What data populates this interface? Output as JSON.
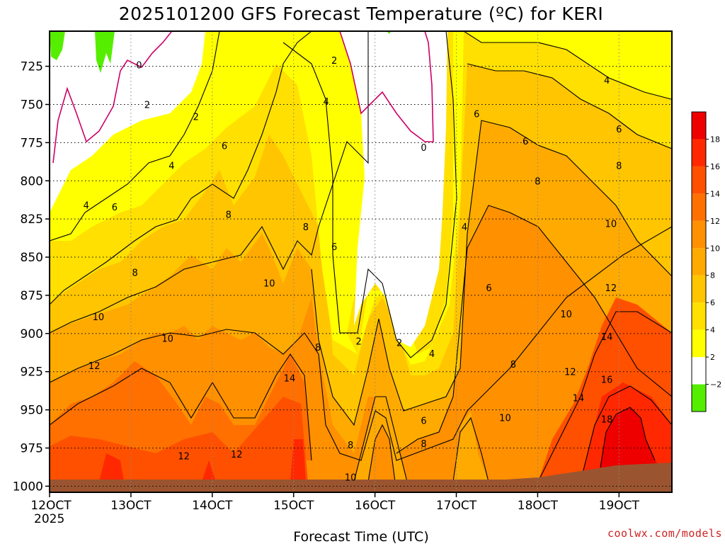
{
  "title": "2025101200 GFS Forecast Temperature (ºC) for KERI",
  "xlabel": "Forecast Time (UTC)",
  "credit": "coolwx.com/models",
  "x_year": "2025",
  "colors": {
    "neg2_to_0": "#55ee00",
    "zero_to_2": "#ffffff",
    "2_to_4": "#ffff00",
    "4_to_6": "#ffe000",
    "6_to_8": "#ffc500",
    "8_to_10": "#ffaa00",
    "10_to_12": "#ff9000",
    "12_to_14": "#ff7000",
    "14_to_16": "#ff5000",
    "16_to_18": "#ff2800",
    "18_plus": "#ee0000",
    "ground": "#9a5530",
    "zero_line": "#cc0066"
  },
  "chart_data": {
    "type": "heatmap",
    "x_ticks": [
      "12OCT",
      "13OCT",
      "14OCT",
      "15OCT",
      "16OCT",
      "17OCT",
      "18OCT",
      "19OCT"
    ],
    "y_ticks": [
      725,
      750,
      775,
      800,
      825,
      850,
      875,
      900,
      925,
      950,
      975,
      1000
    ],
    "ylabel": "",
    "xlim_days": [
      12,
      19.65
    ],
    "ylim_hpa": [
      702,
      1004
    ],
    "colorbar_labels": [
      "18",
      "16",
      "14",
      "12",
      "10",
      "8",
      "6",
      "4",
      "2",
      "−2"
    ],
    "colorbar_levels": [
      -2,
      0,
      2,
      4,
      6,
      8,
      10,
      12,
      14,
      16,
      18,
      20
    ],
    "contour_labels": [
      {
        "text": "0",
        "day": 13.1,
        "p": 724
      },
      {
        "text": "0",
        "day": 16.6,
        "p": 778
      },
      {
        "text": "2",
        "day": 13.2,
        "p": 750
      },
      {
        "text": "2",
        "day": 13.8,
        "p": 758
      },
      {
        "text": "2",
        "day": 15.5,
        "p": 721
      },
      {
        "text": "2",
        "day": 15.8,
        "p": 905
      },
      {
        "text": "2",
        "day": 16.3,
        "p": 906
      },
      {
        "text": "4",
        "day": 12.45,
        "p": 816
      },
      {
        "text": "4",
        "day": 13.5,
        "p": 790
      },
      {
        "text": "4",
        "day": 15.4,
        "p": 748
      },
      {
        "text": "4",
        "day": 16.7,
        "p": 913
      },
      {
        "text": "4",
        "day": 17.1,
        "p": 830
      },
      {
        "text": "4",
        "day": 18.85,
        "p": 734
      },
      {
        "text": "6",
        "day": 12.8,
        "p": 817
      },
      {
        "text": "6",
        "day": 14.15,
        "p": 777
      },
      {
        "text": "6",
        "day": 15.5,
        "p": 843
      },
      {
        "text": "6",
        "day": 17.25,
        "p": 756
      },
      {
        "text": "6",
        "day": 17.4,
        "p": 870
      },
      {
        "text": "6",
        "day": 17.85,
        "p": 774
      },
      {
        "text": "6",
        "day": 19.0,
        "p": 766
      },
      {
        "text": "6",
        "day": 16.6,
        "p": 957
      },
      {
        "text": "8",
        "day": 13.05,
        "p": 860
      },
      {
        "text": "8",
        "day": 14.2,
        "p": 822
      },
      {
        "text": "8",
        "day": 15.15,
        "p": 830
      },
      {
        "text": "8",
        "day": 15.3,
        "p": 909
      },
      {
        "text": "8",
        "day": 18.0,
        "p": 800
      },
      {
        "text": "8",
        "day": 19.0,
        "p": 790
      },
      {
        "text": "8",
        "day": 17.7,
        "p": 920
      },
      {
        "text": "8",
        "day": 16.6,
        "p": 972
      },
      {
        "text": "8",
        "day": 15.7,
        "p": 973
      },
      {
        "text": "10",
        "day": 12.6,
        "p": 889
      },
      {
        "text": "10",
        "day": 13.45,
        "p": 903
      },
      {
        "text": "10",
        "day": 14.7,
        "p": 867
      },
      {
        "text": "10",
        "day": 18.35,
        "p": 887
      },
      {
        "text": "10",
        "day": 18.9,
        "p": 828
      },
      {
        "text": "10",
        "day": 17.6,
        "p": 955
      },
      {
        "text": "10",
        "day": 15.7,
        "p": 994
      },
      {
        "text": "12",
        "day": 12.55,
        "p": 921
      },
      {
        "text": "12",
        "day": 13.65,
        "p": 980
      },
      {
        "text": "12",
        "day": 14.3,
        "p": 979
      },
      {
        "text": "12",
        "day": 18.4,
        "p": 925
      },
      {
        "text": "12",
        "day": 18.9,
        "p": 870
      },
      {
        "text": "14",
        "day": 14.95,
        "p": 929
      },
      {
        "text": "14",
        "day": 18.5,
        "p": 942
      },
      {
        "text": "14",
        "day": 18.85,
        "p": 902
      },
      {
        "text": "16",
        "day": 18.85,
        "p": 930
      },
      {
        "text": "18",
        "day": 18.85,
        "p": 956
      }
    ]
  }
}
